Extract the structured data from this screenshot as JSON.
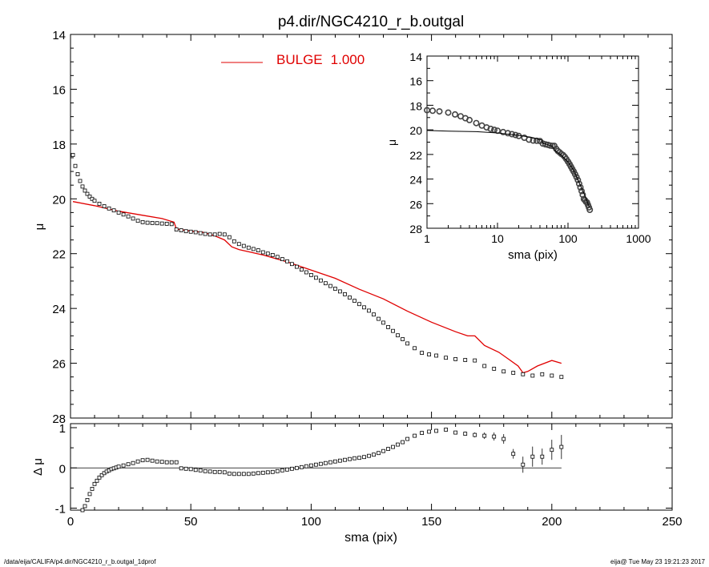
{
  "title": "p4.dir/NGC4210_r_b.outgal",
  "footer": {
    "path": "/data/eija/CALIFA/p4.dir/NGC4210_r_b.outgal_1dprof",
    "stamp": "eija@  Tue May 23 19:21:23 2017"
  },
  "colors": {
    "model": "#e00000",
    "data": "#000000",
    "axis": "#000000"
  },
  "chart_data": [
    {
      "type": "scatter",
      "panel": "main",
      "xlabel": "",
      "ylabel": "μ",
      "xlim": [
        0,
        250
      ],
      "ylim": [
        28,
        14
      ],
      "yticks": [
        14,
        16,
        18,
        20,
        22,
        24,
        26,
        28
      ],
      "xticks": [
        0,
        50,
        100,
        150,
        200,
        250
      ],
      "legend": {
        "label": "BULGE",
        "value": "1.000",
        "placement": "top"
      },
      "series": [
        {
          "name": "BULGE  1.000",
          "kind": "line",
          "x": [
            1,
            10,
            20,
            30,
            38,
            43,
            44,
            50,
            55,
            60,
            64,
            67,
            70,
            80,
            90,
            100,
            110,
            120,
            130,
            140,
            150,
            160,
            165,
            168,
            172,
            178,
            182,
            186,
            188,
            190,
            194,
            200,
            204
          ],
          "y": [
            20.1,
            20.25,
            20.45,
            20.6,
            20.72,
            20.85,
            21.1,
            21.18,
            21.22,
            21.35,
            21.5,
            21.75,
            21.85,
            22.05,
            22.3,
            22.6,
            22.9,
            23.3,
            23.65,
            24.1,
            24.5,
            24.85,
            25.0,
            25.0,
            25.35,
            25.6,
            25.85,
            26.1,
            26.35,
            26.3,
            26.1,
            25.9,
            26.0
          ]
        },
        {
          "kind": "markers",
          "x": [
            1,
            2,
            3,
            4,
            5,
            6,
            7,
            8,
            9,
            10,
            12,
            14,
            16,
            18,
            20,
            22,
            24,
            26,
            28,
            30,
            32,
            34,
            36,
            38,
            40,
            42,
            44,
            46,
            48,
            50,
            52,
            54,
            56,
            58,
            60,
            62,
            64,
            66,
            68,
            70,
            72,
            74,
            76,
            78,
            80,
            82,
            84,
            86,
            88,
            90,
            92,
            94,
            96,
            98,
            100,
            102,
            104,
            106,
            108,
            110,
            112,
            114,
            116,
            118,
            120,
            122,
            124,
            126,
            128,
            130,
            132,
            134,
            136,
            138,
            140,
            143,
            146,
            149,
            152,
            156,
            160,
            164,
            168,
            172,
            176,
            180,
            184,
            188,
            192,
            196,
            200,
            204
          ],
          "y": [
            18.4,
            18.8,
            19.1,
            19.35,
            19.55,
            19.7,
            19.82,
            19.92,
            20.0,
            20.07,
            20.18,
            20.27,
            20.35,
            20.42,
            20.5,
            20.57,
            20.64,
            20.72,
            20.8,
            20.85,
            20.87,
            20.88,
            20.89,
            20.9,
            20.91,
            20.92,
            21.12,
            21.15,
            21.18,
            21.2,
            21.22,
            21.25,
            21.28,
            21.3,
            21.3,
            21.28,
            21.3,
            21.4,
            21.55,
            21.65,
            21.72,
            21.78,
            21.83,
            21.88,
            21.95,
            22.0,
            22.05,
            22.12,
            22.2,
            22.28,
            22.38,
            22.48,
            22.58,
            22.68,
            22.78,
            22.88,
            22.98,
            23.08,
            23.18,
            23.28,
            23.38,
            23.48,
            23.6,
            23.72,
            23.84,
            23.96,
            24.08,
            24.22,
            24.38,
            24.52,
            24.68,
            24.82,
            24.98,
            25.12,
            25.28,
            25.45,
            25.62,
            25.68,
            25.72,
            25.8,
            25.85,
            25.88,
            25.9,
            26.1,
            26.2,
            26.3,
            26.35,
            26.4,
            26.45,
            26.4,
            26.45,
            26.5
          ]
        }
      ]
    },
    {
      "type": "scatter",
      "panel": "residual",
      "xlabel": "sma (pix)",
      "ylabel": "Δ μ",
      "xlim": [
        0,
        250
      ],
      "ylim": [
        -1.05,
        1.1
      ],
      "yticks": [
        -1,
        0,
        1
      ],
      "xticks": [
        0,
        50,
        100,
        150,
        200,
        250
      ],
      "series": [
        {
          "kind": "markers_err",
          "x": [
            5,
            6,
            7,
            8,
            9,
            10,
            11,
            12,
            13,
            14,
            15,
            16,
            17,
            18,
            19,
            20,
            22,
            24,
            26,
            28,
            30,
            32,
            34,
            36,
            38,
            40,
            42,
            44,
            46,
            48,
            50,
            52,
            54,
            56,
            58,
            60,
            62,
            64,
            66,
            68,
            70,
            72,
            74,
            76,
            78,
            80,
            82,
            84,
            86,
            88,
            90,
            92,
            94,
            96,
            98,
            100,
            102,
            104,
            106,
            108,
            110,
            112,
            114,
            116,
            118,
            120,
            122,
            124,
            126,
            128,
            130,
            132,
            134,
            136,
            138,
            140,
            143,
            146,
            149,
            152,
            156,
            160,
            164,
            168,
            172,
            176,
            180,
            184,
            188,
            192,
            196,
            200,
            204
          ],
          "y": [
            -1.05,
            -0.95,
            -0.8,
            -0.65,
            -0.52,
            -0.4,
            -0.32,
            -0.24,
            -0.18,
            -0.13,
            -0.09,
            -0.06,
            -0.03,
            -0.01,
            0.01,
            0.03,
            0.06,
            0.09,
            0.12,
            0.16,
            0.19,
            0.2,
            0.18,
            0.16,
            0.15,
            0.14,
            0.14,
            0.14,
            -0.01,
            -0.02,
            -0.03,
            -0.05,
            -0.06,
            -0.08,
            -0.09,
            -0.1,
            -0.1,
            -0.11,
            -0.14,
            -0.15,
            -0.15,
            -0.15,
            -0.15,
            -0.14,
            -0.13,
            -0.12,
            -0.11,
            -0.1,
            -0.08,
            -0.06,
            -0.04,
            -0.02,
            0.0,
            0.02,
            0.04,
            0.06,
            0.08,
            0.1,
            0.12,
            0.14,
            0.16,
            0.18,
            0.2,
            0.22,
            0.24,
            0.25,
            0.27,
            0.3,
            0.33,
            0.37,
            0.42,
            0.47,
            0.52,
            0.58,
            0.64,
            0.72,
            0.8,
            0.87,
            0.9,
            0.92,
            0.95,
            0.88,
            0.85,
            0.82,
            0.8,
            0.78,
            0.72,
            0.35,
            0.08,
            0.28,
            0.28,
            0.45,
            0.52
          ],
          "err": [
            0,
            0,
            0,
            0,
            0,
            0,
            0,
            0,
            0,
            0,
            0,
            0,
            0,
            0,
            0,
            0,
            0,
            0,
            0,
            0,
            0,
            0,
            0,
            0,
            0,
            0,
            0,
            0,
            0,
            0,
            0,
            0,
            0,
            0,
            0,
            0,
            0,
            0,
            0,
            0,
            0,
            0,
            0,
            0,
            0,
            0,
            0,
            0,
            0,
            0,
            0,
            0,
            0,
            0,
            0,
            0,
            0,
            0,
            0,
            0,
            0,
            0,
            0,
            0,
            0,
            0,
            0,
            0,
            0,
            0,
            0,
            0,
            0,
            0,
            0,
            0,
            0,
            0,
            0,
            0,
            0,
            0.04,
            0.05,
            0.06,
            0.08,
            0.1,
            0.12,
            0.12,
            0.2,
            0.25,
            0.2,
            0.25,
            0.3
          ]
        }
      ]
    },
    {
      "type": "scatter",
      "panel": "inset",
      "xlabel": "sma (pix)",
      "ylabel": "μ",
      "xscale": "log",
      "xlim": [
        1,
        1000
      ],
      "ylim": [
        28,
        14
      ],
      "yticks": [
        14,
        16,
        18,
        20,
        22,
        24,
        26,
        28
      ],
      "xticks": [
        1,
        10,
        100,
        1000
      ],
      "series": [
        {
          "kind": "line",
          "x": [
            1,
            2,
            5,
            10,
            20,
            30,
            43,
            44,
            50,
            60,
            67,
            80,
            100,
            120,
            150,
            180,
            200
          ],
          "y": [
            20.05,
            20.1,
            20.15,
            20.25,
            20.45,
            20.6,
            20.85,
            21.1,
            21.18,
            21.35,
            21.75,
            22.05,
            22.6,
            23.3,
            24.5,
            25.6,
            26.3
          ]
        },
        {
          "kind": "markers",
          "x": [
            1,
            1.2,
            1.5,
            2,
            2.5,
            3,
            3.5,
            4,
            5,
            6,
            7,
            8,
            9,
            10,
            12,
            14,
            16,
            18,
            20,
            24,
            28,
            32,
            36,
            40,
            44,
            48,
            52,
            56,
            60,
            64,
            68,
            72,
            76,
            80,
            85,
            90,
            95,
            100,
            105,
            110,
            115,
            120,
            126,
            132,
            138,
            144,
            150,
            156,
            162,
            168,
            174,
            180,
            186,
            192,
            198,
            204
          ],
          "y": [
            18.4,
            18.45,
            18.5,
            18.6,
            18.75,
            18.9,
            19.05,
            19.2,
            19.45,
            19.65,
            19.8,
            19.92,
            20.0,
            20.07,
            20.18,
            20.27,
            20.35,
            20.42,
            20.5,
            20.64,
            20.8,
            20.87,
            20.89,
            20.91,
            21.12,
            21.18,
            21.22,
            21.28,
            21.3,
            21.3,
            21.55,
            21.72,
            21.83,
            21.95,
            22.05,
            22.2,
            22.38,
            22.58,
            22.78,
            22.98,
            23.18,
            23.38,
            23.6,
            23.84,
            24.08,
            24.38,
            24.68,
            24.98,
            25.28,
            25.62,
            25.72,
            25.85,
            25.9,
            26.1,
            26.3,
            26.5
          ]
        }
      ]
    }
  ]
}
